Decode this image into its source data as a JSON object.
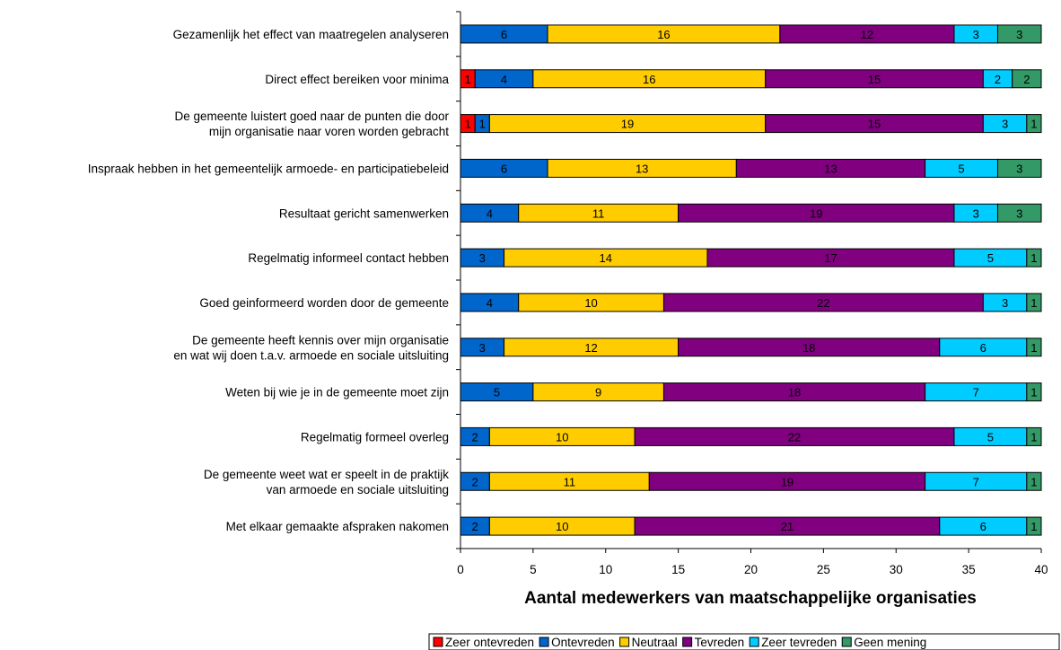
{
  "chart_data": {
    "type": "bar",
    "orientation": "horizontal",
    "stacked": true,
    "categories": [
      [
        "Gezamenlijk het effect van maatregelen analyseren"
      ],
      [
        "Direct effect bereiken voor minima"
      ],
      [
        "De gemeente luistert goed naar de punten die door",
        "mijn organisatie naar voren worden gebracht"
      ],
      [
        "Inspraak hebben in het gemeentelijk armoede- en participatiebeleid"
      ],
      [
        "Resultaat gericht samenwerken"
      ],
      [
        "Regelmatig informeel contact hebben"
      ],
      [
        "Goed geinformeerd worden door de gemeente"
      ],
      [
        "De gemeente heeft kennis over mijn organisatie",
        "en wat wij doen t.a.v. armoede en sociale uitsluiting"
      ],
      [
        "Weten bij wie je in de gemeente moet zijn"
      ],
      [
        "Regelmatig formeel overleg"
      ],
      [
        "De gemeente weet wat er speelt in de praktijk",
        "van armoede en sociale uitsluiting"
      ],
      [
        "Met elkaar gemaakte afspraken nakomen"
      ]
    ],
    "series": [
      {
        "name": "Zeer ontevreden",
        "color": "#ff0000",
        "values": [
          0,
          1,
          1,
          0,
          0,
          0,
          0,
          0,
          0,
          0,
          0,
          0
        ]
      },
      {
        "name": "Ontevreden",
        "color": "#0066cc",
        "values": [
          6,
          4,
          1,
          6,
          4,
          3,
          4,
          3,
          5,
          2,
          2,
          2
        ]
      },
      {
        "name": "Neutraal",
        "color": "#ffcc00",
        "values": [
          16,
          16,
          19,
          13,
          11,
          14,
          10,
          12,
          9,
          10,
          11,
          10
        ]
      },
      {
        "name": "Tevreden",
        "color": "#800080",
        "values": [
          12,
          15,
          15,
          13,
          19,
          17,
          22,
          18,
          18,
          22,
          19,
          21
        ]
      },
      {
        "name": "Zeer tevreden",
        "color": "#00ccff",
        "values": [
          3,
          2,
          3,
          5,
          3,
          5,
          3,
          6,
          7,
          5,
          7,
          6
        ]
      },
      {
        "name": "Geen mening",
        "color": "#339966",
        "values": [
          3,
          2,
          1,
          3,
          3,
          1,
          1,
          1,
          1,
          1,
          1,
          1
        ]
      }
    ],
    "xlabel": "Aantal medewerkers van maatschappelijke organisaties",
    "xlim": [
      0,
      40
    ],
    "xticks": [
      0,
      5,
      10,
      15,
      20,
      25,
      30,
      35,
      40
    ],
    "grid": false,
    "legend_position": "bottom-right"
  }
}
